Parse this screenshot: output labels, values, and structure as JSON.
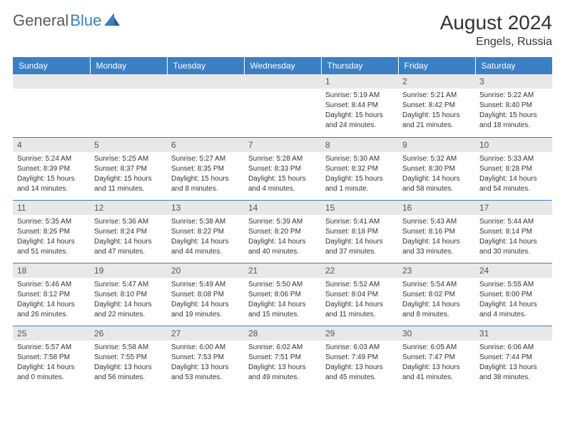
{
  "brand": {
    "part1": "General",
    "part2": "Blue"
  },
  "title": "August 2024",
  "location": "Engels, Russia",
  "colors": {
    "headerBg": "#3b7fc4",
    "dayNumBg": "#e8e8e8",
    "border": "#3b7fc4"
  },
  "weekdays": [
    "Sunday",
    "Monday",
    "Tuesday",
    "Wednesday",
    "Thursday",
    "Friday",
    "Saturday"
  ],
  "weeks": [
    [
      null,
      null,
      null,
      null,
      {
        "n": "1",
        "sr": "Sunrise: 5:19 AM",
        "ss": "Sunset: 8:44 PM",
        "dl": "Daylight: 15 hours and 24 minutes."
      },
      {
        "n": "2",
        "sr": "Sunrise: 5:21 AM",
        "ss": "Sunset: 8:42 PM",
        "dl": "Daylight: 15 hours and 21 minutes."
      },
      {
        "n": "3",
        "sr": "Sunrise: 5:22 AM",
        "ss": "Sunset: 8:40 PM",
        "dl": "Daylight: 15 hours and 18 minutes."
      }
    ],
    [
      {
        "n": "4",
        "sr": "Sunrise: 5:24 AM",
        "ss": "Sunset: 8:39 PM",
        "dl": "Daylight: 15 hours and 14 minutes."
      },
      {
        "n": "5",
        "sr": "Sunrise: 5:25 AM",
        "ss": "Sunset: 8:37 PM",
        "dl": "Daylight: 15 hours and 11 minutes."
      },
      {
        "n": "6",
        "sr": "Sunrise: 5:27 AM",
        "ss": "Sunset: 8:35 PM",
        "dl": "Daylight: 15 hours and 8 minutes."
      },
      {
        "n": "7",
        "sr": "Sunrise: 5:28 AM",
        "ss": "Sunset: 8:33 PM",
        "dl": "Daylight: 15 hours and 4 minutes."
      },
      {
        "n": "8",
        "sr": "Sunrise: 5:30 AM",
        "ss": "Sunset: 8:32 PM",
        "dl": "Daylight: 15 hours and 1 minute."
      },
      {
        "n": "9",
        "sr": "Sunrise: 5:32 AM",
        "ss": "Sunset: 8:30 PM",
        "dl": "Daylight: 14 hours and 58 minutes."
      },
      {
        "n": "10",
        "sr": "Sunrise: 5:33 AM",
        "ss": "Sunset: 8:28 PM",
        "dl": "Daylight: 14 hours and 54 minutes."
      }
    ],
    [
      {
        "n": "11",
        "sr": "Sunrise: 5:35 AM",
        "ss": "Sunset: 8:26 PM",
        "dl": "Daylight: 14 hours and 51 minutes."
      },
      {
        "n": "12",
        "sr": "Sunrise: 5:36 AM",
        "ss": "Sunset: 8:24 PM",
        "dl": "Daylight: 14 hours and 47 minutes."
      },
      {
        "n": "13",
        "sr": "Sunrise: 5:38 AM",
        "ss": "Sunset: 8:22 PM",
        "dl": "Daylight: 14 hours and 44 minutes."
      },
      {
        "n": "14",
        "sr": "Sunrise: 5:39 AM",
        "ss": "Sunset: 8:20 PM",
        "dl": "Daylight: 14 hours and 40 minutes."
      },
      {
        "n": "15",
        "sr": "Sunrise: 5:41 AM",
        "ss": "Sunset: 8:18 PM",
        "dl": "Daylight: 14 hours and 37 minutes."
      },
      {
        "n": "16",
        "sr": "Sunrise: 5:43 AM",
        "ss": "Sunset: 8:16 PM",
        "dl": "Daylight: 14 hours and 33 minutes."
      },
      {
        "n": "17",
        "sr": "Sunrise: 5:44 AM",
        "ss": "Sunset: 8:14 PM",
        "dl": "Daylight: 14 hours and 30 minutes."
      }
    ],
    [
      {
        "n": "18",
        "sr": "Sunrise: 5:46 AM",
        "ss": "Sunset: 8:12 PM",
        "dl": "Daylight: 14 hours and 26 minutes."
      },
      {
        "n": "19",
        "sr": "Sunrise: 5:47 AM",
        "ss": "Sunset: 8:10 PM",
        "dl": "Daylight: 14 hours and 22 minutes."
      },
      {
        "n": "20",
        "sr": "Sunrise: 5:49 AM",
        "ss": "Sunset: 8:08 PM",
        "dl": "Daylight: 14 hours and 19 minutes."
      },
      {
        "n": "21",
        "sr": "Sunrise: 5:50 AM",
        "ss": "Sunset: 8:06 PM",
        "dl": "Daylight: 14 hours and 15 minutes."
      },
      {
        "n": "22",
        "sr": "Sunrise: 5:52 AM",
        "ss": "Sunset: 8:04 PM",
        "dl": "Daylight: 14 hours and 11 minutes."
      },
      {
        "n": "23",
        "sr": "Sunrise: 5:54 AM",
        "ss": "Sunset: 8:02 PM",
        "dl": "Daylight: 14 hours and 8 minutes."
      },
      {
        "n": "24",
        "sr": "Sunrise: 5:55 AM",
        "ss": "Sunset: 8:00 PM",
        "dl": "Daylight: 14 hours and 4 minutes."
      }
    ],
    [
      {
        "n": "25",
        "sr": "Sunrise: 5:57 AM",
        "ss": "Sunset: 7:58 PM",
        "dl": "Daylight: 14 hours and 0 minutes."
      },
      {
        "n": "26",
        "sr": "Sunrise: 5:58 AM",
        "ss": "Sunset: 7:55 PM",
        "dl": "Daylight: 13 hours and 56 minutes."
      },
      {
        "n": "27",
        "sr": "Sunrise: 6:00 AM",
        "ss": "Sunset: 7:53 PM",
        "dl": "Daylight: 13 hours and 53 minutes."
      },
      {
        "n": "28",
        "sr": "Sunrise: 6:02 AM",
        "ss": "Sunset: 7:51 PM",
        "dl": "Daylight: 13 hours and 49 minutes."
      },
      {
        "n": "29",
        "sr": "Sunrise: 6:03 AM",
        "ss": "Sunset: 7:49 PM",
        "dl": "Daylight: 13 hours and 45 minutes."
      },
      {
        "n": "30",
        "sr": "Sunrise: 6:05 AM",
        "ss": "Sunset: 7:47 PM",
        "dl": "Daylight: 13 hours and 41 minutes."
      },
      {
        "n": "31",
        "sr": "Sunrise: 6:06 AM",
        "ss": "Sunset: 7:44 PM",
        "dl": "Daylight: 13 hours and 38 minutes."
      }
    ]
  ]
}
